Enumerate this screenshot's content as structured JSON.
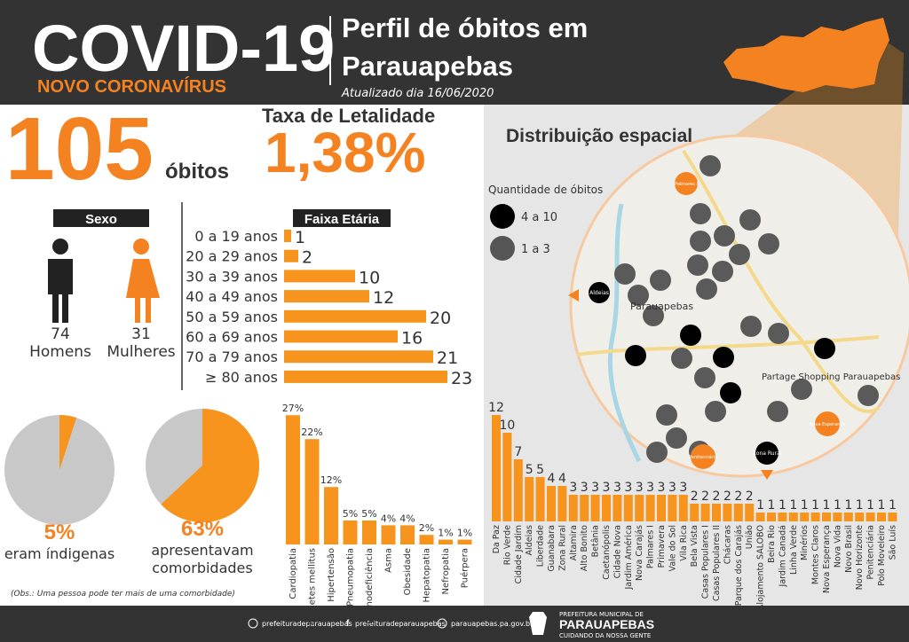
{
  "header": {
    "title": "COVID-19",
    "subtitle": "NOVO CORONAVÍRUS",
    "heading_line1": "Perfil de óbitos em",
    "heading_line2": "Parauapebas",
    "updated": "Atualizado dia 16/06/2020"
  },
  "deaths": {
    "value": 105,
    "label": "óbitos"
  },
  "lethality": {
    "title": "Taxa de Letalidade",
    "value": 1.38,
    "value_label": "1,38%"
  },
  "sex": {
    "title": "Sexo",
    "men": {
      "value": 74,
      "label": "Homens"
    },
    "women": {
      "value": 31,
      "label": "Mulheres"
    }
  },
  "chart_data": [
    {
      "type": "bar",
      "orientation": "horizontal",
      "title": "Faixa Etária",
      "color": "#f7941d",
      "categories": [
        "0 a 19 anos",
        "20 a 29 anos",
        "30 a 39 anos",
        "40 a 49 anos",
        "50 a 59 anos",
        "60 a 69 anos",
        "70 a 79 anos",
        "≥ 80 anos"
      ],
      "values": [
        1,
        2,
        10,
        12,
        20,
        16,
        21,
        23
      ]
    },
    {
      "type": "pie",
      "color": "#f7941d",
      "values": [
        5
      ],
      "value_labels": [
        "5%"
      ],
      "caption": [
        "eram índigenas"
      ]
    },
    {
      "type": "pie",
      "color": "#f7941d",
      "values": [
        63
      ],
      "value_labels": [
        "63%"
      ],
      "caption": [
        "apresentavam",
        "comorbidades"
      ]
    },
    {
      "type": "bar",
      "orientation": "vertical",
      "color": "#f7941d",
      "categories": [
        "Cardiopatia",
        "Diabetes mellitus",
        "Hipertensão",
        "Pneumopatia",
        "Imunodeficiência",
        "Asma",
        "Obesidade",
        "Hepatopatia",
        "Nefropatia",
        "Puérpera"
      ],
      "values": [
        27,
        22,
        12,
        5,
        5,
        4,
        4,
        2,
        1,
        1
      ],
      "value_labels": [
        "27%",
        "22%",
        "12%",
        "5%",
        "5%",
        "4%",
        "4%",
        "2%",
        "1%",
        "1%"
      ]
    },
    {
      "type": "bar",
      "orientation": "vertical",
      "color": "#f7941d",
      "categories": [
        "Da Paz",
        "Rio Verde",
        "Cidade Jardim",
        "Aldeias",
        "Liberdade",
        "Guanabara",
        "Zona Rural",
        "Altamira",
        "Alto Bonito",
        "Betânia",
        "Caetanópolis",
        "Cidade Nova",
        "Jardim América",
        "Nova Carajás",
        "Palmares I",
        "Primavera",
        "Vale do Sol",
        "Vila Rica",
        "Bela Vista",
        "Casas Populares I",
        "Casas Populares II",
        "Chácaras",
        "Parque dos Carajás",
        "União",
        "Alojamento SALOBO",
        "Beira Rio",
        "Jardim Canadá",
        "Linha Verde",
        "Minérios",
        "Montes Claros",
        "Nova Esperança",
        "Nova Vida",
        "Novo Brasil",
        "Novo Horizonte",
        "Penitenciária",
        "Polo Moveleiro",
        "São Luís"
      ],
      "values": [
        12,
        10,
        7,
        5,
        5,
        4,
        4,
        3,
        3,
        3,
        3,
        3,
        3,
        3,
        3,
        3,
        3,
        3,
        2,
        2,
        2,
        2,
        2,
        2,
        1,
        1,
        1,
        1,
        1,
        1,
        1,
        1,
        1,
        1,
        1,
        1,
        1
      ]
    }
  ],
  "note": "(Obs.: Uma pessoa pode ter mais de uma comorbidade)",
  "map": {
    "title": "Distribuição espacial",
    "legend_title": "Quantidade de óbitos",
    "legend": [
      "4 a 10",
      "1 a 3"
    ],
    "labels": [
      "Parauapebas",
      "Partage Shopping Parauapebas",
      "Aldeias",
      "Palmares I",
      "Penitenciária",
      "Zona Rural",
      "Nova Esperança"
    ]
  },
  "footer": {
    "instagram": "prefeituradeparauapebas",
    "facebook": "prefeituradeparauapebas",
    "website": "parauapebas.pa.gov.br",
    "org_line1": "PREFEITURA MUNICIPAL DE",
    "org_line2": "PARAUAPEBAS",
    "org_line3": "CUIDANDO DA NOSSA GENTE"
  }
}
